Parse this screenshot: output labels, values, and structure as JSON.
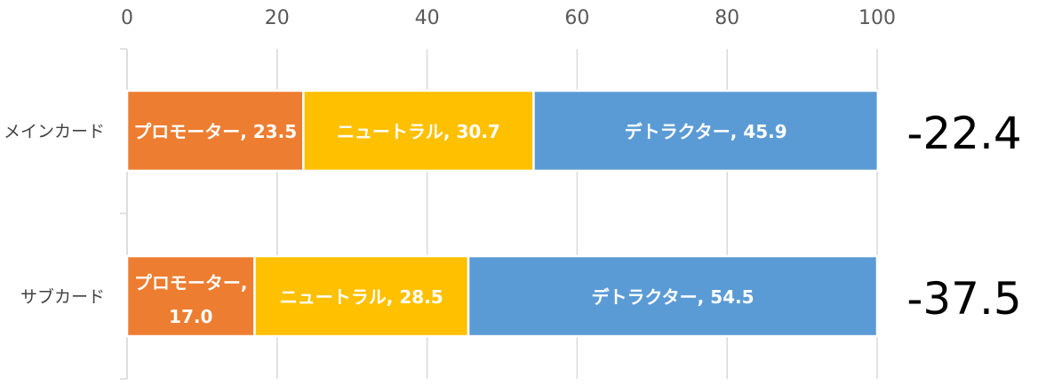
{
  "chart_data": {
    "type": "bar",
    "orientation": "horizontal",
    "stacked": true,
    "categories": [
      "メインカード",
      "サブカード"
    ],
    "series": [
      {
        "name": "プロモーター",
        "values": [
          23.5,
          17.0
        ],
        "color": "#ED7D31"
      },
      {
        "name": "ニュートラル",
        "values": [
          30.7,
          28.5
        ],
        "color": "#FFC000"
      },
      {
        "name": "デトラクター",
        "values": [
          45.9,
          54.5
        ],
        "color": "#5B9BD5"
      }
    ],
    "xlim": [
      0,
      100
    ],
    "xticks": [
      "0",
      "20",
      "40",
      "60",
      "80",
      "100"
    ],
    "grid": true,
    "legend": "none",
    "annotations": [
      "-22.4",
      "-37.5"
    ]
  }
}
